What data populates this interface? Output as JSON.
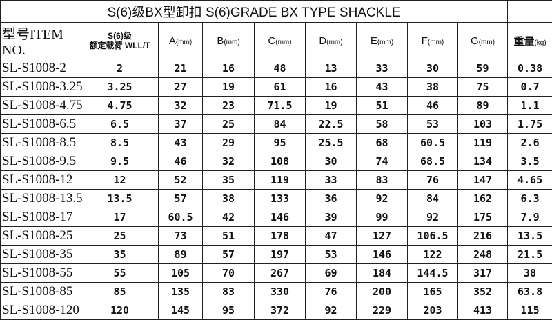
{
  "title": "S(6)级BX型卸扣 S(6)GRADE BX TYPE SHACKLE",
  "headers": {
    "item": "型号ITEM NO.",
    "wll_line1": "S(6)级",
    "wll_line2": "额定载荷 WLL/T",
    "A": "A",
    "B": "B",
    "C": "C",
    "D": "D",
    "E": "E",
    "F": "F",
    "G": "G",
    "unit_mm": "(mm)",
    "weight": "重量",
    "unit_kg": "(kg)"
  },
  "rows": [
    [
      "SL-S1008-2",
      "2",
      "21",
      "16",
      "48",
      "13",
      "33",
      "30",
      "59",
      "0.38"
    ],
    [
      "SL-S1008-3.25",
      "3.25",
      "27",
      "19",
      "61",
      "16",
      "43",
      "38",
      "75",
      "0.7"
    ],
    [
      "SL-S1008-4.75",
      "4.75",
      "32",
      "23",
      "71.5",
      "19",
      "51",
      "46",
      "89",
      "1.1"
    ],
    [
      "SL-S1008-6.5",
      "6.5",
      "37",
      "25",
      "84",
      "22.5",
      "58",
      "53",
      "103",
      "1.75"
    ],
    [
      "SL-S1008-8.5",
      "8.5",
      "43",
      "29",
      "95",
      "25.5",
      "68",
      "60.5",
      "119",
      "2.6"
    ],
    [
      "SL-S1008-9.5",
      "9.5",
      "46",
      "32",
      "108",
      "30",
      "74",
      "68.5",
      "134",
      "3.5"
    ],
    [
      "SL-S1008-12",
      "12",
      "52",
      "35",
      "119",
      "33",
      "83",
      "76",
      "147",
      "4.65"
    ],
    [
      "SL-S1008-13.5",
      "13.5",
      "57",
      "38",
      "133",
      "36",
      "92",
      "84",
      "162",
      "6.3"
    ],
    [
      "SL-S1008-17",
      "17",
      "60.5",
      "42",
      "146",
      "39",
      "99",
      "92",
      "175",
      "7.9"
    ],
    [
      "SL-S1008-25",
      "25",
      "73",
      "51",
      "178",
      "47",
      "127",
      "106.5",
      "216",
      "13.5"
    ],
    [
      "SL-S1008-35",
      "35",
      "89",
      "57",
      "197",
      "53",
      "146",
      "122",
      "248",
      "21.5"
    ],
    [
      "SL-S1008-55",
      "55",
      "105",
      "70",
      "267",
      "69",
      "184",
      "144.5",
      "317",
      "38"
    ],
    [
      "SL-S1008-85",
      "85",
      "135",
      "83",
      "330",
      "76",
      "200",
      "165",
      "352",
      "63.8"
    ],
    [
      "SL-S1008-120",
      "120",
      "145",
      "95",
      "372",
      "92",
      "229",
      "203",
      "413",
      "115"
    ]
  ]
}
